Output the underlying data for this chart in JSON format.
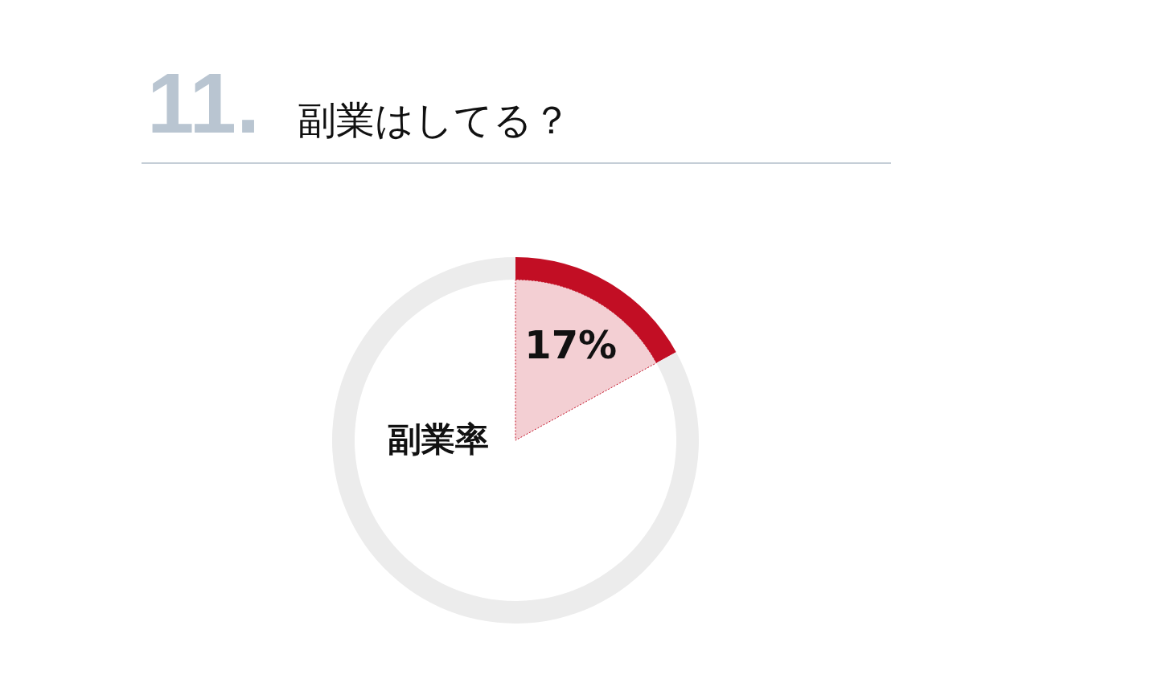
{
  "chart_data": {
    "type": "donut",
    "title": "11. 副業はしてる？",
    "categories": [
      null,
      null
    ],
    "values": [
      17,
      83
    ],
    "colors": [
      "#c20e24",
      "#ececec"
    ],
    "value_labels": [
      "17%",
      null
    ],
    "annotations": [
      "副業率"
    ]
  }
}
